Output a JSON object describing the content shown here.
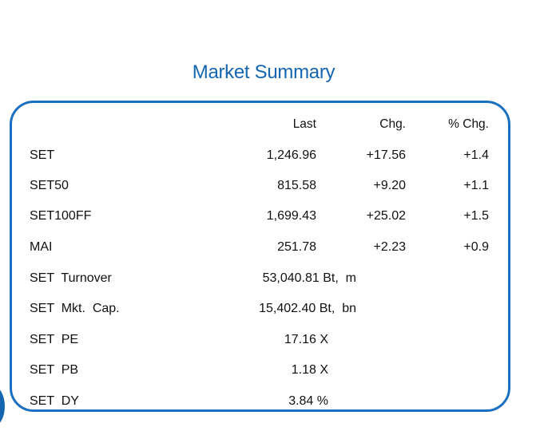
{
  "title": "Market Summary",
  "headers": {
    "last": "Last",
    "chg": "Chg.",
    "pct": "% Chg."
  },
  "indices": [
    {
      "name": "SET",
      "last": "1,246.96",
      "chg": "+17.56",
      "pct": "+1.4"
    },
    {
      "name": "SET50",
      "last": "815.58",
      "chg": "+9.20",
      "pct": "+1.1"
    },
    {
      "name": "SET100FF",
      "last": "1,699.43",
      "chg": "+25.02",
      "pct": "+1.5"
    },
    {
      "name": "MAI",
      "last": "251.78",
      "chg": "+2.23",
      "pct": "+0.9"
    }
  ],
  "stats": [
    {
      "name": "SET  Turnover",
      "value": "53,040.81 Bt,  m"
    },
    {
      "name": "SET  Mkt.  Cap.",
      "value": "15,402.40 Bt,  bn"
    },
    {
      "name": "SET  PE",
      "value": "17.16 X"
    },
    {
      "name": "SET  PB",
      "value": "1.18 X"
    },
    {
      "name": "SET  DY",
      "value": "3.84 %"
    }
  ],
  "colors": {
    "accent": "#1565b0",
    "border": "#1a6fc0",
    "text": "#111111"
  }
}
